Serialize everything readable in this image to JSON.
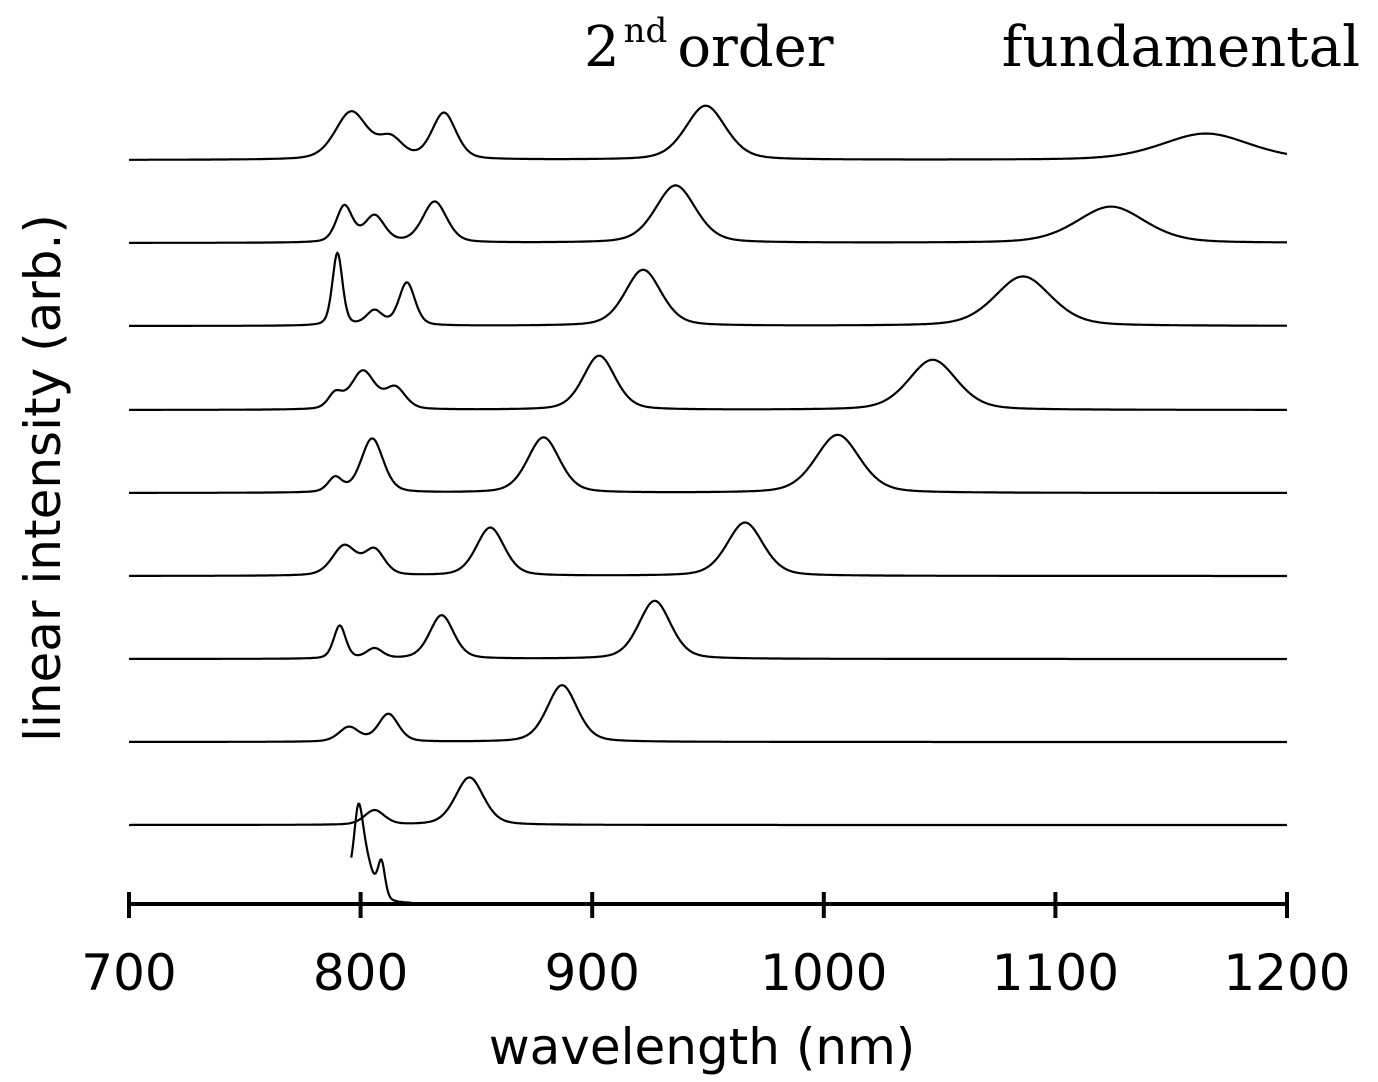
{
  "chart_data": {
    "type": "line",
    "xlabel": "wavelength (nm)",
    "ylabel": "linear intensity (arb.)",
    "xlim": [
      700,
      1200
    ],
    "xticks": [
      "700",
      "800",
      "900",
      "1000",
      "1100",
      "1200"
    ],
    "grid": false,
    "annotations": {
      "second_order_base": "2",
      "second_order_sup": "nd",
      "second_order_rest": "order",
      "fundamental": "fundamental"
    },
    "series": [
      {
        "peaks": [
          [
            800,
            1.0,
            4.5
          ],
          [
            799,
            0.55,
            1.8
          ],
          [
            809,
            0.55,
            1.8
          ]
        ]
      },
      {
        "peaks": [
          [
            806,
            0.22,
            5
          ],
          [
            847,
            0.72,
            7
          ]
        ]
      },
      {
        "peaks": [
          [
            795,
            0.22,
            5
          ],
          [
            812,
            0.42,
            5
          ],
          [
            887,
            0.86,
            7.5
          ]
        ]
      },
      {
        "peaks": [
          [
            791,
            0.5,
            3
          ],
          [
            806,
            0.15,
            4
          ],
          [
            835,
            0.66,
            6
          ],
          [
            927,
            0.88,
            8
          ]
        ]
      },
      {
        "peaks": [
          [
            793,
            0.45,
            6
          ],
          [
            806,
            0.38,
            5
          ],
          [
            856,
            0.73,
            7
          ],
          [
            966,
            0.81,
            9
          ]
        ]
      },
      {
        "peaks": [
          [
            789,
            0.22,
            3.5
          ],
          [
            805,
            0.82,
            5.5
          ],
          [
            879,
            0.84,
            8
          ],
          [
            1006,
            0.88,
            11
          ]
        ]
      },
      {
        "peaks": [
          [
            789,
            0.22,
            3.5
          ],
          [
            801,
            0.58,
            6
          ],
          [
            815,
            0.32,
            5
          ],
          [
            903,
            0.82,
            8
          ],
          [
            1047,
            0.76,
            12
          ]
        ]
      },
      {
        "peaks": [
          [
            790,
            1.1,
            2.5
          ],
          [
            806,
            0.22,
            4
          ],
          [
            820,
            0.65,
            4
          ],
          [
            922,
            0.85,
            9
          ],
          [
            1086,
            0.75,
            14
          ]
        ]
      },
      {
        "peaks": [
          [
            793,
            0.55,
            4
          ],
          [
            806,
            0.4,
            5
          ],
          [
            832,
            0.62,
            6
          ],
          [
            936,
            0.87,
            10
          ],
          [
            1124,
            0.55,
            17
          ]
        ]
      },
      {
        "peaks": [
          [
            796,
            0.72,
            8
          ],
          [
            813,
            0.3,
            6
          ],
          [
            836,
            0.7,
            6
          ],
          [
            949,
            0.82,
            10
          ],
          [
            1165,
            0.4,
            22
          ]
        ]
      }
    ]
  }
}
